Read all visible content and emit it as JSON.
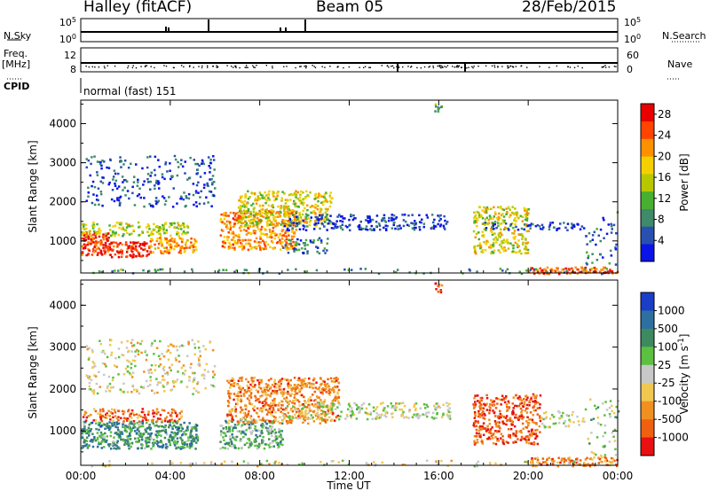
{
  "header": {
    "station": "Halley (fitACF)",
    "beam": "Beam 05",
    "date": "28/Feb/2015"
  },
  "top_panels": {
    "nsky_label": "N.Sky",
    "nsearch_label": "N.Search",
    "freq_label": "Freq.",
    "freq_unit": "[MHz]",
    "nave_label": "Nave",
    "cpid_label": "CPID",
    "cpid_value": "normal (fast) 151",
    "noise_ticks_left": [
      "10^5",
      "10^0"
    ],
    "noise_ticks_right": [
      "10^5",
      "10^0"
    ],
    "freq_ticks": [
      "12",
      "8"
    ],
    "nave_ticks": [
      "60",
      "0"
    ]
  },
  "chart_data": [
    {
      "type": "heatmap",
      "title": "",
      "xlabel": "",
      "ylabel": "Slant Range [km]",
      "colorbar_label": "Power [dB]",
      "x_range": [
        "00:00",
        "24:00"
      ],
      "ylim": [
        180,
        4600
      ],
      "yticks": [
        "1000",
        "2000",
        "3000",
        "4000"
      ],
      "colorbar_ticks": [
        "4",
        "8",
        "12",
        "16",
        "20",
        "24",
        "28"
      ],
      "colorbar_range": [
        0,
        30
      ],
      "colorbar_colors": [
        "#0a14e6",
        "#2850b0",
        "#3e8a6a",
        "#48b030",
        "#b8c800",
        "#f5d000",
        "#ff9000",
        "#ff4400",
        "#e80000"
      ],
      "series": [
        {
          "t0": 0.0,
          "t1": 1.3,
          "r0": 650,
          "r1": 1250,
          "level": 0.88,
          "density": 0.8
        },
        {
          "t0": 1.3,
          "t1": 3.0,
          "r0": 600,
          "r1": 1000,
          "level": 0.92,
          "density": 0.75
        },
        {
          "t0": 3.0,
          "t1": 5.2,
          "r0": 700,
          "r1": 1100,
          "level": 0.72,
          "density": 0.7
        },
        {
          "t0": 0.0,
          "t1": 4.8,
          "r0": 1150,
          "r1": 1500,
          "level": 0.5,
          "density": 0.55
        },
        {
          "t0": 0.2,
          "t1": 6.0,
          "r0": 1900,
          "r1": 3200,
          "level": 0.15,
          "density": 0.18
        },
        {
          "t0": 6.2,
          "t1": 9.6,
          "r0": 800,
          "r1": 1800,
          "level": 0.72,
          "density": 0.6
        },
        {
          "t0": 7.0,
          "t1": 11.2,
          "r0": 1400,
          "r1": 2300,
          "level": 0.55,
          "density": 0.55
        },
        {
          "t0": 9.0,
          "t1": 16.5,
          "r0": 1300,
          "r1": 1700,
          "level": 0.12,
          "density": 0.4
        },
        {
          "t0": 9.0,
          "t1": 11.0,
          "r0": 700,
          "r1": 1100,
          "level": 0.25,
          "density": 0.35
        },
        {
          "t0": 15.8,
          "t1": 16.1,
          "r0": 4300,
          "r1": 4550,
          "level": 0.35,
          "density": 0.8
        },
        {
          "t0": 17.5,
          "t1": 20.0,
          "r0": 700,
          "r1": 1900,
          "level": 0.55,
          "density": 0.5
        },
        {
          "t0": 18.0,
          "t1": 22.5,
          "r0": 1300,
          "r1": 1500,
          "level": 0.12,
          "density": 0.35
        },
        {
          "t0": 20.0,
          "t1": 24.0,
          "r0": 180,
          "r1": 350,
          "level": 0.85,
          "density": 0.8
        },
        {
          "t0": 0.0,
          "t1": 24.0,
          "r0": 180,
          "r1": 320,
          "level": 0.3,
          "density": 0.12
        },
        {
          "t0": 22.5,
          "t1": 24.0,
          "r0": 400,
          "r1": 1800,
          "level": 0.2,
          "density": 0.12
        }
      ]
    },
    {
      "type": "heatmap",
      "title": "",
      "xlabel": "Time UT",
      "ylabel": "Slant Range [km]",
      "colorbar_label": "Velocity [m s^-1]",
      "x_range": [
        "00:00",
        "24:00"
      ],
      "xticks": [
        "00:00",
        "04:00",
        "08:00",
        "12:00",
        "16:00",
        "20:00",
        "00:00"
      ],
      "ylim": [
        180,
        4600
      ],
      "yticks": [
        "1000",
        "2000",
        "3000",
        "4000"
      ],
      "colorbar_ticks": [
        "1000",
        "500",
        "100",
        "25",
        "-25",
        "-100",
        "-500",
        "-1000"
      ],
      "colorbar_colors": [
        "#1a3ec8",
        "#2d6fa0",
        "#3e8a60",
        "#5cc040",
        "#c8c8c8",
        "#f0c850",
        "#f09020",
        "#f06010",
        "#e81010"
      ],
      "series": [
        {
          "t0": 0.0,
          "t1": 5.2,
          "r0": 600,
          "r1": 1250,
          "level": 0.72,
          "density": 0.75
        },
        {
          "t0": 0.0,
          "t1": 4.5,
          "r0": 1250,
          "r1": 1550,
          "level": 0.2,
          "density": 0.5
        },
        {
          "t0": 0.2,
          "t1": 6.0,
          "r0": 1900,
          "r1": 3200,
          "level": 0.45,
          "density": 0.18
        },
        {
          "t0": 6.2,
          "t1": 9.0,
          "r0": 600,
          "r1": 1300,
          "level": 0.65,
          "density": 0.6
        },
        {
          "t0": 6.5,
          "t1": 11.5,
          "r0": 1200,
          "r1": 2300,
          "level": 0.25,
          "density": 0.6
        },
        {
          "t0": 9.0,
          "t1": 16.5,
          "r0": 1300,
          "r1": 1700,
          "level": 0.5,
          "density": 0.4
        },
        {
          "t0": 15.8,
          "t1": 16.1,
          "r0": 4300,
          "r1": 4550,
          "level": 0.15,
          "density": 0.8
        },
        {
          "t0": 17.5,
          "t1": 20.5,
          "r0": 700,
          "r1": 1900,
          "level": 0.15,
          "density": 0.55
        },
        {
          "t0": 20.0,
          "t1": 24.0,
          "r0": 180,
          "r1": 400,
          "level": 0.25,
          "density": 0.6
        },
        {
          "t0": 20.5,
          "t1": 22.5,
          "r0": 1100,
          "r1": 1500,
          "level": 0.5,
          "density": 0.3
        },
        {
          "t0": 0.0,
          "t1": 24.0,
          "r0": 180,
          "r1": 320,
          "level": 0.45,
          "density": 0.12
        },
        {
          "t0": 22.5,
          "t1": 24.0,
          "r0": 400,
          "r1": 1800,
          "level": 0.55,
          "density": 0.12
        }
      ]
    }
  ]
}
